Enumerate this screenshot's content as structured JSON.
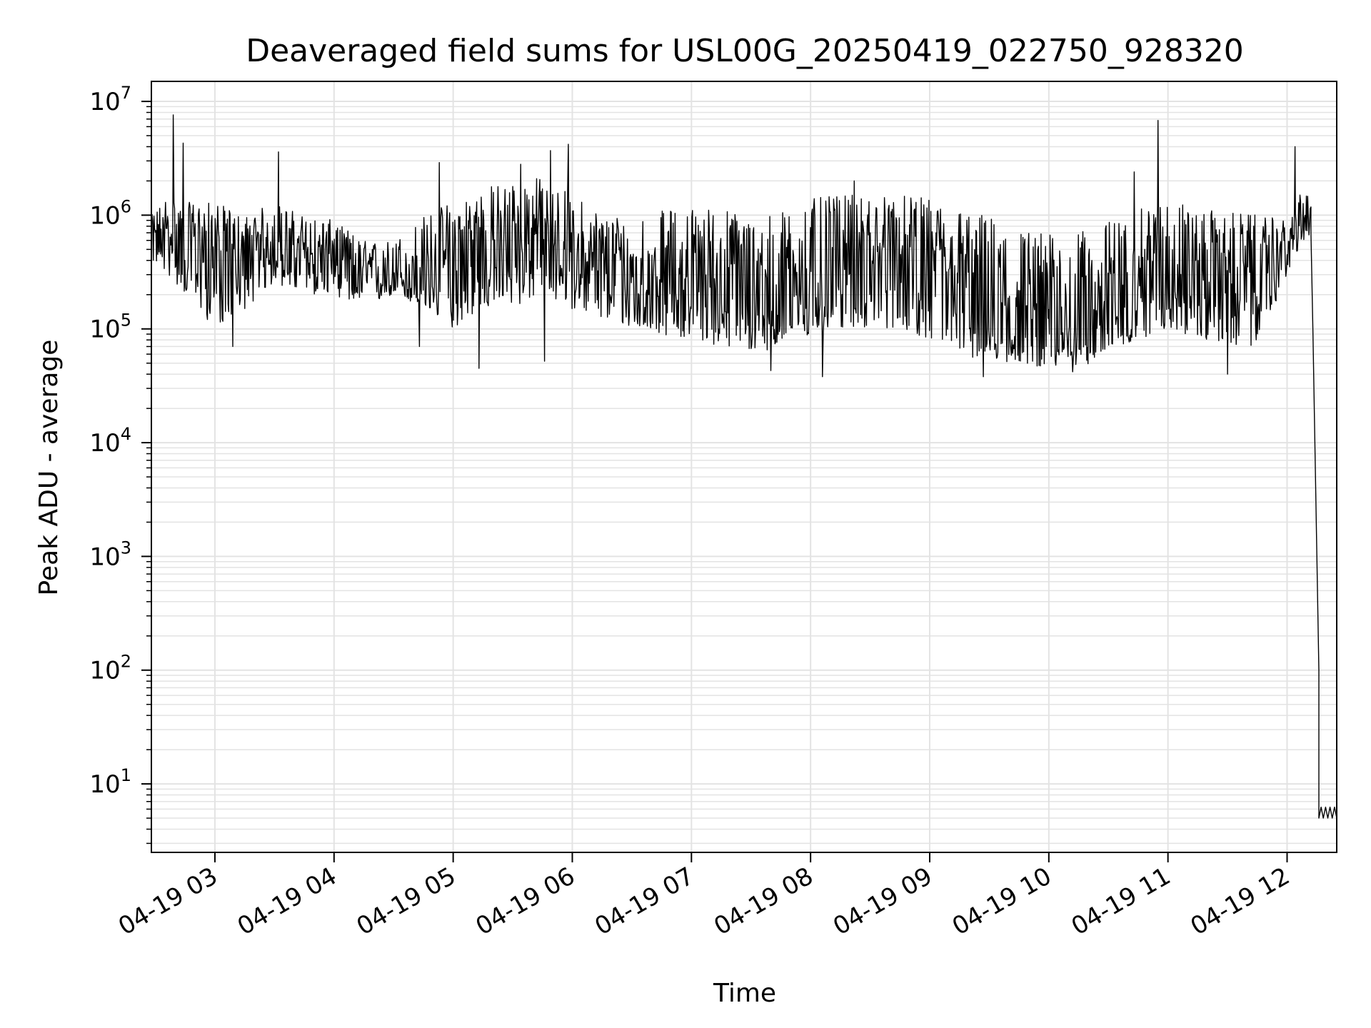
{
  "chart_data": {
    "type": "line",
    "title": "Deaveraged field sums for USL00G_20250419_022750_928320",
    "xlabel": "Time",
    "ylabel": "Peak ADU - average",
    "yscale": "log",
    "grid": true,
    "line_color": "#000000",
    "grid_color": "#e3e3e3",
    "xlim": [
      "2025-04-19 02:28",
      "2025-04-19 12:25"
    ],
    "ylim": [
      2.5,
      15000000
    ],
    "x_ticks": [
      {
        "t": "2025-04-19 03:00",
        "label": "04-19 03"
      },
      {
        "t": "2025-04-19 04:00",
        "label": "04-19 04"
      },
      {
        "t": "2025-04-19 05:00",
        "label": "04-19 05"
      },
      {
        "t": "2025-04-19 06:00",
        "label": "04-19 06"
      },
      {
        "t": "2025-04-19 07:00",
        "label": "04-19 07"
      },
      {
        "t": "2025-04-19 08:00",
        "label": "04-19 08"
      },
      {
        "t": "2025-04-19 09:00",
        "label": "04-19 09"
      },
      {
        "t": "2025-04-19 10:00",
        "label": "04-19 10"
      },
      {
        "t": "2025-04-19 11:00",
        "label": "04-19 11"
      },
      {
        "t": "2025-04-19 12:00",
        "label": "04-19 12"
      }
    ],
    "y_ticks": [
      {
        "value": 10,
        "base": "10",
        "exp": "1"
      },
      {
        "value": 100,
        "base": "10",
        "exp": "2"
      },
      {
        "value": 1000,
        "base": "10",
        "exp": "3"
      },
      {
        "value": 10000,
        "base": "10",
        "exp": "4"
      },
      {
        "value": 100000,
        "base": "10",
        "exp": "5"
      },
      {
        "value": 1000000,
        "base": "10",
        "exp": "6"
      },
      {
        "value": 10000000,
        "base": "10",
        "exp": "7"
      }
    ],
    "series": [
      {
        "envelope": {
          "x": [
            "2025-04-19 02:28",
            "2025-04-19 02:36",
            "2025-04-19 02:45",
            "2025-04-19 03:00",
            "2025-04-19 03:15",
            "2025-04-19 03:30",
            "2025-04-19 03:45",
            "2025-04-19 04:00",
            "2025-04-19 04:15",
            "2025-04-19 04:30",
            "2025-04-19 04:45",
            "2025-04-19 05:00",
            "2025-04-19 05:15",
            "2025-04-19 05:30",
            "2025-04-19 05:45",
            "2025-04-19 06:00",
            "2025-04-19 06:15",
            "2025-04-19 06:30",
            "2025-04-19 06:45",
            "2025-04-19 07:00",
            "2025-04-19 07:15",
            "2025-04-19 07:30",
            "2025-04-19 07:45",
            "2025-04-19 08:00",
            "2025-04-19 08:15",
            "2025-04-19 08:30",
            "2025-04-19 08:45",
            "2025-04-19 09:00",
            "2025-04-19 09:15",
            "2025-04-19 09:30",
            "2025-04-19 09:45",
            "2025-04-19 10:00",
            "2025-04-19 10:15",
            "2025-04-19 10:30",
            "2025-04-19 10:45",
            "2025-04-19 11:00",
            "2025-04-19 11:15",
            "2025-04-19 11:30",
            "2025-04-19 11:45",
            "2025-04-19 12:00",
            "2025-04-19 12:08",
            "2025-04-19 12:12"
          ],
          "median": [
            600000,
            700000,
            600000,
            500000,
            350000,
            550000,
            450000,
            450000,
            300000,
            280000,
            250000,
            350000,
            500000,
            600000,
            700000,
            400000,
            300000,
            250000,
            250000,
            300000,
            250000,
            200000,
            200000,
            300000,
            400000,
            450000,
            450000,
            350000,
            200000,
            150000,
            120000,
            110000,
            100000,
            150000,
            250000,
            400000,
            300000,
            300000,
            250000,
            500000,
            900000,
            800000
          ],
          "low": [
            400000,
            300000,
            200000,
            100000,
            150000,
            250000,
            200000,
            200000,
            150000,
            200000,
            150000,
            100000,
            150000,
            150000,
            200000,
            150000,
            120000,
            100000,
            90000,
            80000,
            70000,
            60000,
            70000,
            80000,
            100000,
            100000,
            100000,
            80000,
            60000,
            50000,
            50000,
            45000,
            45000,
            60000,
            80000,
            100000,
            80000,
            70000,
            70000,
            300000,
            600000,
            600000
          ],
          "high": [
            1000000,
            1500000,
            1300000,
            1300000,
            1000000,
            1300000,
            1000000,
            900000,
            600000,
            600000,
            1000000,
            1400000,
            1800000,
            2000000,
            2200000,
            1500000,
            1100000,
            1000000,
            1100000,
            1200000,
            1200000,
            1000000,
            1100000,
            1400000,
            1500000,
            1500000,
            1500000,
            1400000,
            1200000,
            1000000,
            800000,
            700000,
            700000,
            900000,
            1100000,
            1500000,
            1100000,
            1100000,
            1000000,
            900000,
            1700000,
            1600000
          ]
        },
        "spikes": [
          {
            "t": "2025-04-19 02:39",
            "value": 7600000
          },
          {
            "t": "2025-04-19 02:44",
            "value": 4300000
          },
          {
            "t": "2025-04-19 03:32",
            "value": 3600000
          },
          {
            "t": "2025-04-19 04:53",
            "value": 2900000
          },
          {
            "t": "2025-04-19 05:34",
            "value": 2800000
          },
          {
            "t": "2025-04-19 05:49",
            "value": 3700000
          },
          {
            "t": "2025-04-19 05:58",
            "value": 4200000
          },
          {
            "t": "2025-04-19 08:22",
            "value": 2000000
          },
          {
            "t": "2025-04-19 10:43",
            "value": 2400000
          },
          {
            "t": "2025-04-19 10:55",
            "value": 6800000
          },
          {
            "t": "2025-04-19 12:04",
            "value": 4000000
          }
        ],
        "dips": [
          {
            "t": "2025-04-19 03:09",
            "value": 70000
          },
          {
            "t": "2025-04-19 04:43",
            "value": 70000
          },
          {
            "t": "2025-04-19 05:13",
            "value": 45000
          },
          {
            "t": "2025-04-19 05:46",
            "value": 52000
          },
          {
            "t": "2025-04-19 07:40",
            "value": 43000
          },
          {
            "t": "2025-04-19 08:06",
            "value": 38000
          },
          {
            "t": "2025-04-19 09:27",
            "value": 38000
          },
          {
            "t": "2025-04-19 10:12",
            "value": 42000
          },
          {
            "t": "2025-04-19 11:30",
            "value": 40000
          }
        ],
        "tail": {
          "x": [
            "2025-04-19 12:12",
            "2025-04-19 12:13",
            "2025-04-19 12:14",
            "2025-04-19 12:15",
            "2025-04-19 12:16",
            "2025-04-19 12:16",
            "2025-04-19 12:25"
          ],
          "values": [
            700000,
            100000,
            10000,
            1000,
            100,
            5,
            5
          ]
        }
      }
    ]
  }
}
